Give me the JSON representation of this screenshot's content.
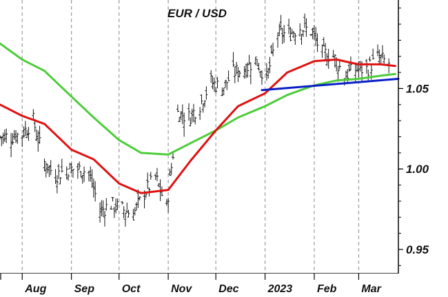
{
  "chart_data": {
    "type": "line",
    "title": "EUR / USD",
    "x_tick_labels": [
      "Aug",
      "Sep",
      "Oct",
      "Nov",
      "Dec",
      "2023",
      "Feb",
      "Mar"
    ],
    "y_tick_labels": [
      "1.05",
      "1.00",
      "0.95"
    ],
    "y_ticks": [
      1.05,
      1.0,
      0.95
    ],
    "ylim": [
      0.935,
      1.105
    ],
    "x_domain": [
      "2022-07-18",
      "2023-03-26"
    ],
    "grid": "vertical dashed at month boundaries",
    "colors": {
      "price": "#111111",
      "ma_short": "#e01010",
      "ma_long": "#4ccc3a",
      "trendline": "#0a1fc8",
      "grid": "#9a9a9a"
    },
    "series": [
      {
        "name": "",
        "style": "ohlc-bars",
        "x": [
          "2022-07-18",
          "2022-07-25",
          "2022-08-01",
          "2022-08-08",
          "2022-08-15",
          "2022-08-22",
          "2022-08-29",
          "2022-09-05",
          "2022-09-12",
          "2022-09-19",
          "2022-09-26",
          "2022-10-03",
          "2022-10-10",
          "2022-10-17",
          "2022-10-24",
          "2022-10-31",
          "2022-11-07",
          "2022-11-14",
          "2022-11-21",
          "2022-11-28",
          "2022-12-05",
          "2022-12-12",
          "2022-12-19",
          "2022-12-26",
          "2023-01-02",
          "2023-01-09",
          "2023-01-16",
          "2023-01-23",
          "2023-01-30",
          "2023-02-06",
          "2023-02-13",
          "2023-02-20",
          "2023-02-27",
          "2023-03-06",
          "2023-03-13",
          "2023-03-20"
        ],
        "values": [
          1.02,
          1.02,
          1.022,
          1.03,
          1.004,
          0.996,
          1.0,
          1.0,
          0.998,
          0.974,
          0.978,
          0.975,
          0.972,
          0.985,
          0.995,
          0.976,
          1.035,
          1.032,
          1.04,
          1.054,
          1.05,
          1.06,
          1.062,
          1.068,
          1.056,
          1.084,
          1.084,
          1.088,
          1.086,
          1.072,
          1.07,
          1.058,
          1.062,
          1.062,
          1.069,
          1.066
        ]
      },
      {
        "name": "",
        "style": "line",
        "x": [
          "2022-07-18",
          "2022-08-01",
          "2022-08-15",
          "2022-09-01",
          "2022-09-15",
          "2022-10-01",
          "2022-10-15",
          "2022-11-01",
          "2022-11-15",
          "2022-12-01",
          "2022-12-15",
          "2023-01-01",
          "2023-01-15",
          "2023-02-01",
          "2023-02-15",
          "2023-03-01",
          "2023-03-15",
          "2023-03-24"
        ],
        "values": [
          1.04,
          1.033,
          1.028,
          1.012,
          1.006,
          0.991,
          0.985,
          0.987,
          1.005,
          1.024,
          1.039,
          1.047,
          1.06,
          1.067,
          1.068,
          1.065,
          1.065,
          1.064
        ]
      },
      {
        "name": "",
        "style": "line",
        "x": [
          "2022-07-18",
          "2022-08-01",
          "2022-08-15",
          "2022-09-01",
          "2022-09-15",
          "2022-10-01",
          "2022-10-15",
          "2022-11-01",
          "2022-11-15",
          "2022-12-01",
          "2022-12-15",
          "2023-01-01",
          "2023-01-15",
          "2023-02-01",
          "2023-02-15",
          "2023-03-01",
          "2023-03-15",
          "2023-03-24"
        ],
        "values": [
          1.078,
          1.068,
          1.061,
          1.045,
          1.032,
          1.018,
          1.01,
          1.009,
          1.016,
          1.024,
          1.032,
          1.039,
          1.046,
          1.052,
          1.055,
          1.056,
          1.058,
          1.059
        ]
      },
      {
        "name": "",
        "style": "trendline",
        "x": [
          "2022-12-30",
          "2023-03-26"
        ],
        "values": [
          1.049,
          1.056
        ]
      }
    ]
  }
}
